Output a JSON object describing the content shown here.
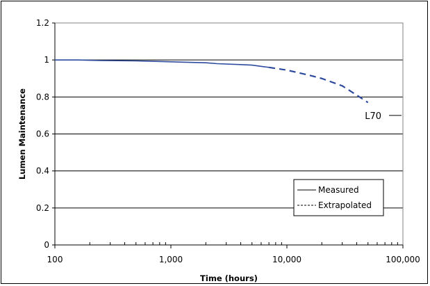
{
  "chart_data": {
    "type": "line",
    "xlabel": "Time (hours)",
    "ylabel": "Lumen Maintenance",
    "xscale": "log",
    "xlim": [
      100,
      100000
    ],
    "ylim": [
      0,
      1.2
    ],
    "x_ticks": [
      100,
      1000,
      10000,
      100000
    ],
    "x_tick_labels": [
      "100",
      "1,000",
      "10,000",
      "100,000"
    ],
    "y_ticks": [
      0,
      0.2,
      0.4,
      0.6,
      0.8,
      1,
      1.2
    ],
    "y_tick_labels": [
      "0",
      "0.2",
      "0.4",
      "0.6",
      "0.8",
      "1",
      "1.2"
    ],
    "grid": "horizontal",
    "series": [
      {
        "name": "Measured",
        "style": "solid",
        "color": "#2e4a9e",
        "points": [
          [
            100,
            1.0
          ],
          [
            160,
            1.0
          ],
          [
            250,
            0.997
          ],
          [
            500,
            0.995
          ],
          [
            1000,
            0.99
          ],
          [
            2000,
            0.985
          ],
          [
            2500,
            0.98
          ],
          [
            4000,
            0.975
          ],
          [
            5000,
            0.972
          ],
          [
            7000,
            0.96
          ]
        ]
      },
      {
        "name": "Extrapolated",
        "style": "dashed",
        "color": "#2e4a9e",
        "points": [
          [
            7000,
            0.96
          ],
          [
            10000,
            0.945
          ],
          [
            15000,
            0.92
          ],
          [
            20000,
            0.9
          ],
          [
            30000,
            0.86
          ],
          [
            40000,
            0.81
          ],
          [
            50000,
            0.77
          ]
        ]
      }
    ],
    "annotations": [
      {
        "text": "L70",
        "y": 0.7
      }
    ],
    "legend": {
      "placement": "bottom-right",
      "entries": [
        "Measured",
        "Extrapolated"
      ]
    }
  }
}
